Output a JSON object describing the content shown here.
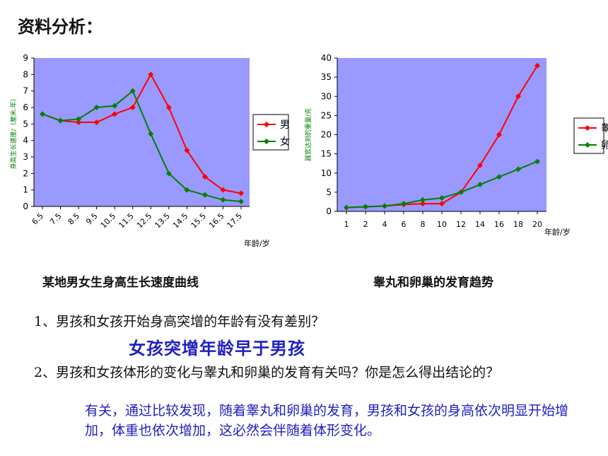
{
  "heading": "资料分析：",
  "captions": {
    "chart1": "某地男女生身高生长速度曲线",
    "chart2": "睾丸和卵巢的发育趋势"
  },
  "questions": {
    "q1": "1、男孩和女孩开始身高突增的年龄有没有差别？",
    "a1": "女孩突增年龄早于男孩",
    "q2": "2、男孩和女孩体形的变化与睾丸和卵巢的发育有关吗？你是怎么得出结论的？",
    "a2": "有关，通过比较发现，随着睾丸和卵巢的发育，男孩和女孩的身高依次明显开始增加，体重也依次增加，这必然会伴随着体形变化。"
  },
  "colors": {
    "plot_bg": "#9999ff",
    "male": "#ff0000",
    "female": "#008000",
    "answer": "#2020c0"
  },
  "chart_data": [
    {
      "type": "line",
      "ylabel": "身高生长速度/（厘米.年）",
      "xlabel": "年龄/岁",
      "categories": [
        "6.5",
        "7.5",
        "8.5",
        "9.5",
        "10.5",
        "11.5",
        "12.5",
        "13.5",
        "14.5",
        "15.5",
        "16.5",
        "17.5"
      ],
      "yticks": [
        "0",
        "1",
        "2",
        "3",
        "4",
        "5",
        "6",
        "7",
        "8",
        "9"
      ],
      "ylim": [
        0,
        9
      ],
      "legend_position": "right",
      "series": [
        {
          "name": "男",
          "color": "#ff0000",
          "values": [
            5.6,
            5.2,
            5.1,
            5.1,
            5.6,
            6.0,
            8.0,
            6.0,
            3.4,
            1.8,
            1.0,
            0.8
          ]
        },
        {
          "name": "女",
          "color": "#008000",
          "values": [
            5.6,
            5.2,
            5.3,
            6.0,
            6.1,
            7.0,
            4.4,
            2.0,
            1.0,
            0.7,
            0.4,
            0.3
          ]
        }
      ]
    },
    {
      "type": "line",
      "ylabel": "器官达到的重量/克",
      "xlabel": "年龄/岁",
      "categories": [
        "1",
        "2",
        "4",
        "6",
        "8",
        "10",
        "12",
        "14",
        "16",
        "18",
        "20"
      ],
      "yticks": [
        "0",
        "5",
        "10",
        "15",
        "20",
        "25",
        "30",
        "35",
        "40"
      ],
      "ylim": [
        0,
        40
      ],
      "legend_position": "right",
      "series": [
        {
          "name": "睾丸",
          "color": "#ff0000",
          "values": [
            1,
            1.2,
            1.4,
            1.8,
            2,
            2,
            5,
            12,
            20,
            30,
            38
          ]
        },
        {
          "name": "卵巢",
          "color": "#008000",
          "values": [
            1,
            1.2,
            1.4,
            2,
            3,
            3.5,
            5,
            7,
            9,
            11,
            13
          ]
        }
      ]
    }
  ]
}
